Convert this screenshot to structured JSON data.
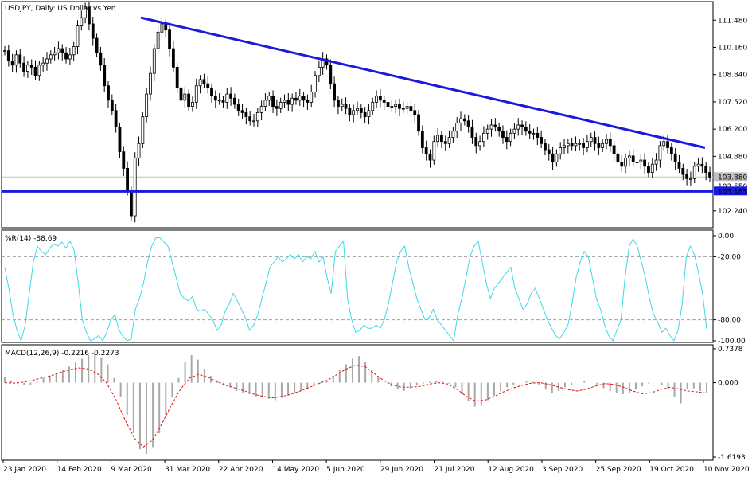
{
  "chart_data": [
    {
      "type": "candlestick",
      "title": "USDJPY, Daily:  US Dollar vs Yen",
      "ylim": [
        101.5,
        112.3
      ],
      "y_ticks": [
        "111.480",
        "110.160",
        "108.840",
        "107.520",
        "106.200",
        "104.880",
        "103.185",
        "102.240"
      ],
      "price_labels": {
        "current": "103.880",
        "hidden": "103.550",
        "support": "103.185"
      },
      "series": [
        {
          "name": "price_close_approx",
          "values": [
            110.0,
            109.5,
            109.3,
            109.8,
            109.4,
            109.0,
            109.3,
            109.2,
            108.8,
            109.3,
            109.4,
            109.6,
            109.8,
            109.9,
            110.1,
            109.9,
            109.6,
            109.8,
            110.2,
            111.2,
            111.6,
            112.1,
            111.3,
            110.6,
            109.9,
            109.3,
            108.3,
            107.6,
            107.1,
            106.3,
            105.1,
            104.3,
            103.2,
            102.0,
            104.8,
            105.5,
            106.8,
            107.9,
            108.9,
            110.1,
            110.9,
            111.3,
            111.0,
            110.1,
            109.2,
            108.2,
            107.6,
            107.9,
            107.3,
            107.5,
            108.3,
            108.6,
            108.4,
            108.2,
            107.8,
            107.6,
            107.6,
            107.5,
            107.9,
            107.7,
            107.4,
            107.1,
            107.0,
            106.8,
            106.6,
            106.6,
            107.0,
            107.3,
            107.6,
            107.8,
            107.3,
            107.2,
            107.5,
            107.6,
            107.4,
            107.7,
            107.6,
            107.8,
            107.6,
            107.5,
            108.0,
            108.8,
            109.2,
            109.6,
            109.3,
            108.4,
            107.6,
            107.3,
            107.4,
            107.2,
            106.9,
            107.1,
            107.2,
            107.0,
            106.8,
            107.1,
            107.5,
            107.8,
            107.6,
            107.5,
            107.3,
            107.3,
            107.4,
            107.2,
            107.2,
            107.3,
            107.1,
            106.9,
            106.1,
            105.3,
            105.0,
            104.7,
            105.6,
            105.9,
            105.6,
            105.5,
            105.8,
            106.1,
            106.5,
            106.7,
            106.6,
            106.3,
            105.8,
            105.4,
            105.6,
            106.0,
            106.2,
            106.4,
            106.3,
            106.1,
            105.8,
            105.6,
            106.0,
            106.2,
            106.4,
            106.3,
            106.1,
            106.0,
            106.0,
            105.8,
            105.5,
            105.2,
            105.0,
            104.6,
            105.0,
            105.3,
            105.4,
            105.5,
            105.4,
            105.5,
            105.5,
            105.3,
            105.6,
            105.8,
            105.5,
            105.3,
            105.5,
            105.7,
            105.4,
            105.0,
            104.6,
            104.4,
            104.8,
            104.9,
            104.6,
            104.6,
            104.7,
            104.4,
            104.1,
            104.5,
            104.7,
            105.4,
            105.6,
            105.3,
            105.0,
            104.6,
            104.3,
            104.0,
            103.8,
            103.8,
            104.4,
            104.5,
            104.4,
            104.1,
            103.88
          ]
        }
      ],
      "trendlines": [
        {
          "name": "descending-resistance",
          "from": {
            "date": "2 Mar 2020",
            "price": 111.6
          },
          "to": {
            "date": "20 Nov 2020",
            "price": 105.3
          }
        },
        {
          "name": "horizontal-support",
          "price": 103.185
        }
      ]
    },
    {
      "type": "line",
      "title": "%R(14) -88.69",
      "ylim": [
        -100,
        0
      ],
      "y_ticks": [
        "0.00",
        "-20.00",
        "-80.00",
        "-100.00"
      ],
      "reference_lines": [
        -20,
        -80
      ],
      "series": [
        {
          "name": "%R",
          "values": [
            -30,
            -50,
            -75,
            -90,
            -100,
            -85,
            -55,
            -25,
            -10,
            -15,
            -18,
            -12,
            -8,
            -10,
            -6,
            -12,
            -5,
            -14,
            -45,
            -80,
            -92,
            -100,
            -98,
            -95,
            -100,
            -92,
            -80,
            -75,
            -90,
            -96,
            -100,
            -98,
            -70,
            -60,
            -45,
            -25,
            -10,
            -2,
            -2,
            -6,
            -10,
            -25,
            -40,
            -55,
            -60,
            -62,
            -58,
            -70,
            -72,
            -70,
            -75,
            -80,
            -90,
            -85,
            -72,
            -65,
            -55,
            -62,
            -70,
            -78,
            -90,
            -85,
            -75,
            -60,
            -45,
            -30,
            -25,
            -20,
            -25,
            -22,
            -18,
            -22,
            -18,
            -25,
            -20,
            -22,
            -15,
            -25,
            -20,
            -40,
            -55,
            -15,
            -10,
            -5,
            -60,
            -80,
            -92,
            -90,
            -85,
            -88,
            -88,
            -85,
            -88,
            -80,
            -65,
            -45,
            -25,
            -15,
            -10,
            -30,
            -45,
            -60,
            -70,
            -80,
            -78,
            -70,
            -80,
            -85,
            -90,
            -95,
            -100,
            -75,
            -60,
            -40,
            -20,
            -10,
            -5,
            -25,
            -45,
            -60,
            -50,
            -45,
            -40,
            -35,
            -30,
            -50,
            -60,
            -70,
            -65,
            -55,
            -50,
            -60,
            -70,
            -80,
            -88,
            -95,
            -98,
            -92,
            -85,
            -65,
            -40,
            -25,
            -15,
            -20,
            -40,
            -60,
            -70,
            -85,
            -95,
            -100,
            -90,
            -80,
            -40,
            -10,
            -3,
            -10,
            -25,
            -40,
            -60,
            -75,
            -82,
            -92,
            -88,
            -95,
            -100,
            -90,
            -65,
            -20,
            -10,
            -18,
            -35,
            -55,
            -88.69
          ]
        }
      ]
    },
    {
      "type": "bar+line",
      "title": "MACD(12,26,9) -0.2216 -0.2273",
      "ylim": [
        -1.6193,
        0.7378
      ],
      "y_ticks": [
        "0.7378",
        "0.000",
        "-1.6193"
      ],
      "series": [
        {
          "name": "MACD",
          "values": [
            0.12,
            0.05,
            -0.02,
            -0.05,
            -0.04,
            0.02,
            0.1,
            0.15,
            0.2,
            0.28,
            0.35,
            0.45,
            0.52,
            0.6,
            0.62,
            0.55,
            0.4,
            0.1,
            -0.3,
            -0.7,
            -1.1,
            -1.45,
            -1.55,
            -1.4,
            -1.1,
            -0.7,
            -0.3,
            0.1,
            0.45,
            0.6,
            0.5,
            0.3,
            0.15,
            0.05,
            -0.05,
            -0.1,
            -0.18,
            -0.22,
            -0.25,
            -0.3,
            -0.32,
            -0.35,
            -0.38,
            -0.33,
            -0.28,
            -0.22,
            -0.18,
            -0.14,
            -0.08,
            -0.02,
            0.05,
            0.15,
            0.28,
            0.4,
            0.52,
            0.58,
            0.45,
            0.28,
            0.12,
            0.0,
            -0.08,
            -0.14,
            -0.18,
            -0.12,
            -0.06,
            -0.02,
            0.02,
            0.04,
            0.02,
            -0.02,
            -0.1,
            -0.25,
            -0.4,
            -0.52,
            -0.5,
            -0.38,
            -0.28,
            -0.18,
            -0.1,
            -0.05,
            0.0,
            0.04,
            0.02,
            -0.05,
            -0.15,
            -0.22,
            -0.18,
            -0.1,
            -0.05,
            0.0,
            0.03,
            0.0,
            -0.06,
            -0.12,
            -0.18,
            -0.22,
            -0.25,
            -0.22,
            -0.15,
            -0.08,
            -0.02,
            0.0,
            -0.05,
            -0.14,
            -0.3,
            -0.45,
            -0.15,
            -0.12,
            -0.18,
            -0.2216
          ]
        },
        {
          "name": "Signal",
          "values": [
            0.0,
            -0.01,
            0.01,
            0.05,
            0.1,
            0.15,
            0.22,
            0.28,
            0.32,
            0.3,
            0.2,
            0.0,
            -0.35,
            -0.8,
            -1.2,
            -1.4,
            -1.25,
            -0.9,
            -0.5,
            -0.15,
            0.1,
            0.18,
            0.12,
            0.02,
            -0.06,
            -0.12,
            -0.18,
            -0.25,
            -0.3,
            -0.33,
            -0.3,
            -0.25,
            -0.18,
            -0.1,
            -0.02,
            0.06,
            0.18,
            0.3,
            0.38,
            0.35,
            0.2,
            0.05,
            -0.05,
            -0.1,
            -0.1,
            -0.08,
            -0.03,
            0.0,
            -0.03,
            -0.15,
            -0.3,
            -0.4,
            -0.38,
            -0.3,
            -0.2,
            -0.12,
            -0.06,
            -0.01,
            0.0,
            -0.04,
            -0.1,
            -0.15,
            -0.18,
            -0.14,
            -0.07,
            -0.02,
            -0.04,
            -0.1,
            -0.18,
            -0.24,
            -0.22,
            -0.15,
            -0.1,
            -0.14,
            -0.18,
            -0.2,
            -0.2273
          ]
        }
      ]
    }
  ],
  "x_axis": {
    "labels": [
      "23 Jan 2020",
      "14 Feb 2020",
      "9 Mar 2020",
      "31 Mar 2020",
      "22 Apr 2020",
      "14 May 2020",
      "5 Jun 2020",
      "29 Jun 2020",
      "21 Jul 2020",
      "12 Aug 2020",
      "3 Sep 2020",
      "25 Sep 2020",
      "19 Oct 2020",
      "10 Nov 2020"
    ]
  }
}
